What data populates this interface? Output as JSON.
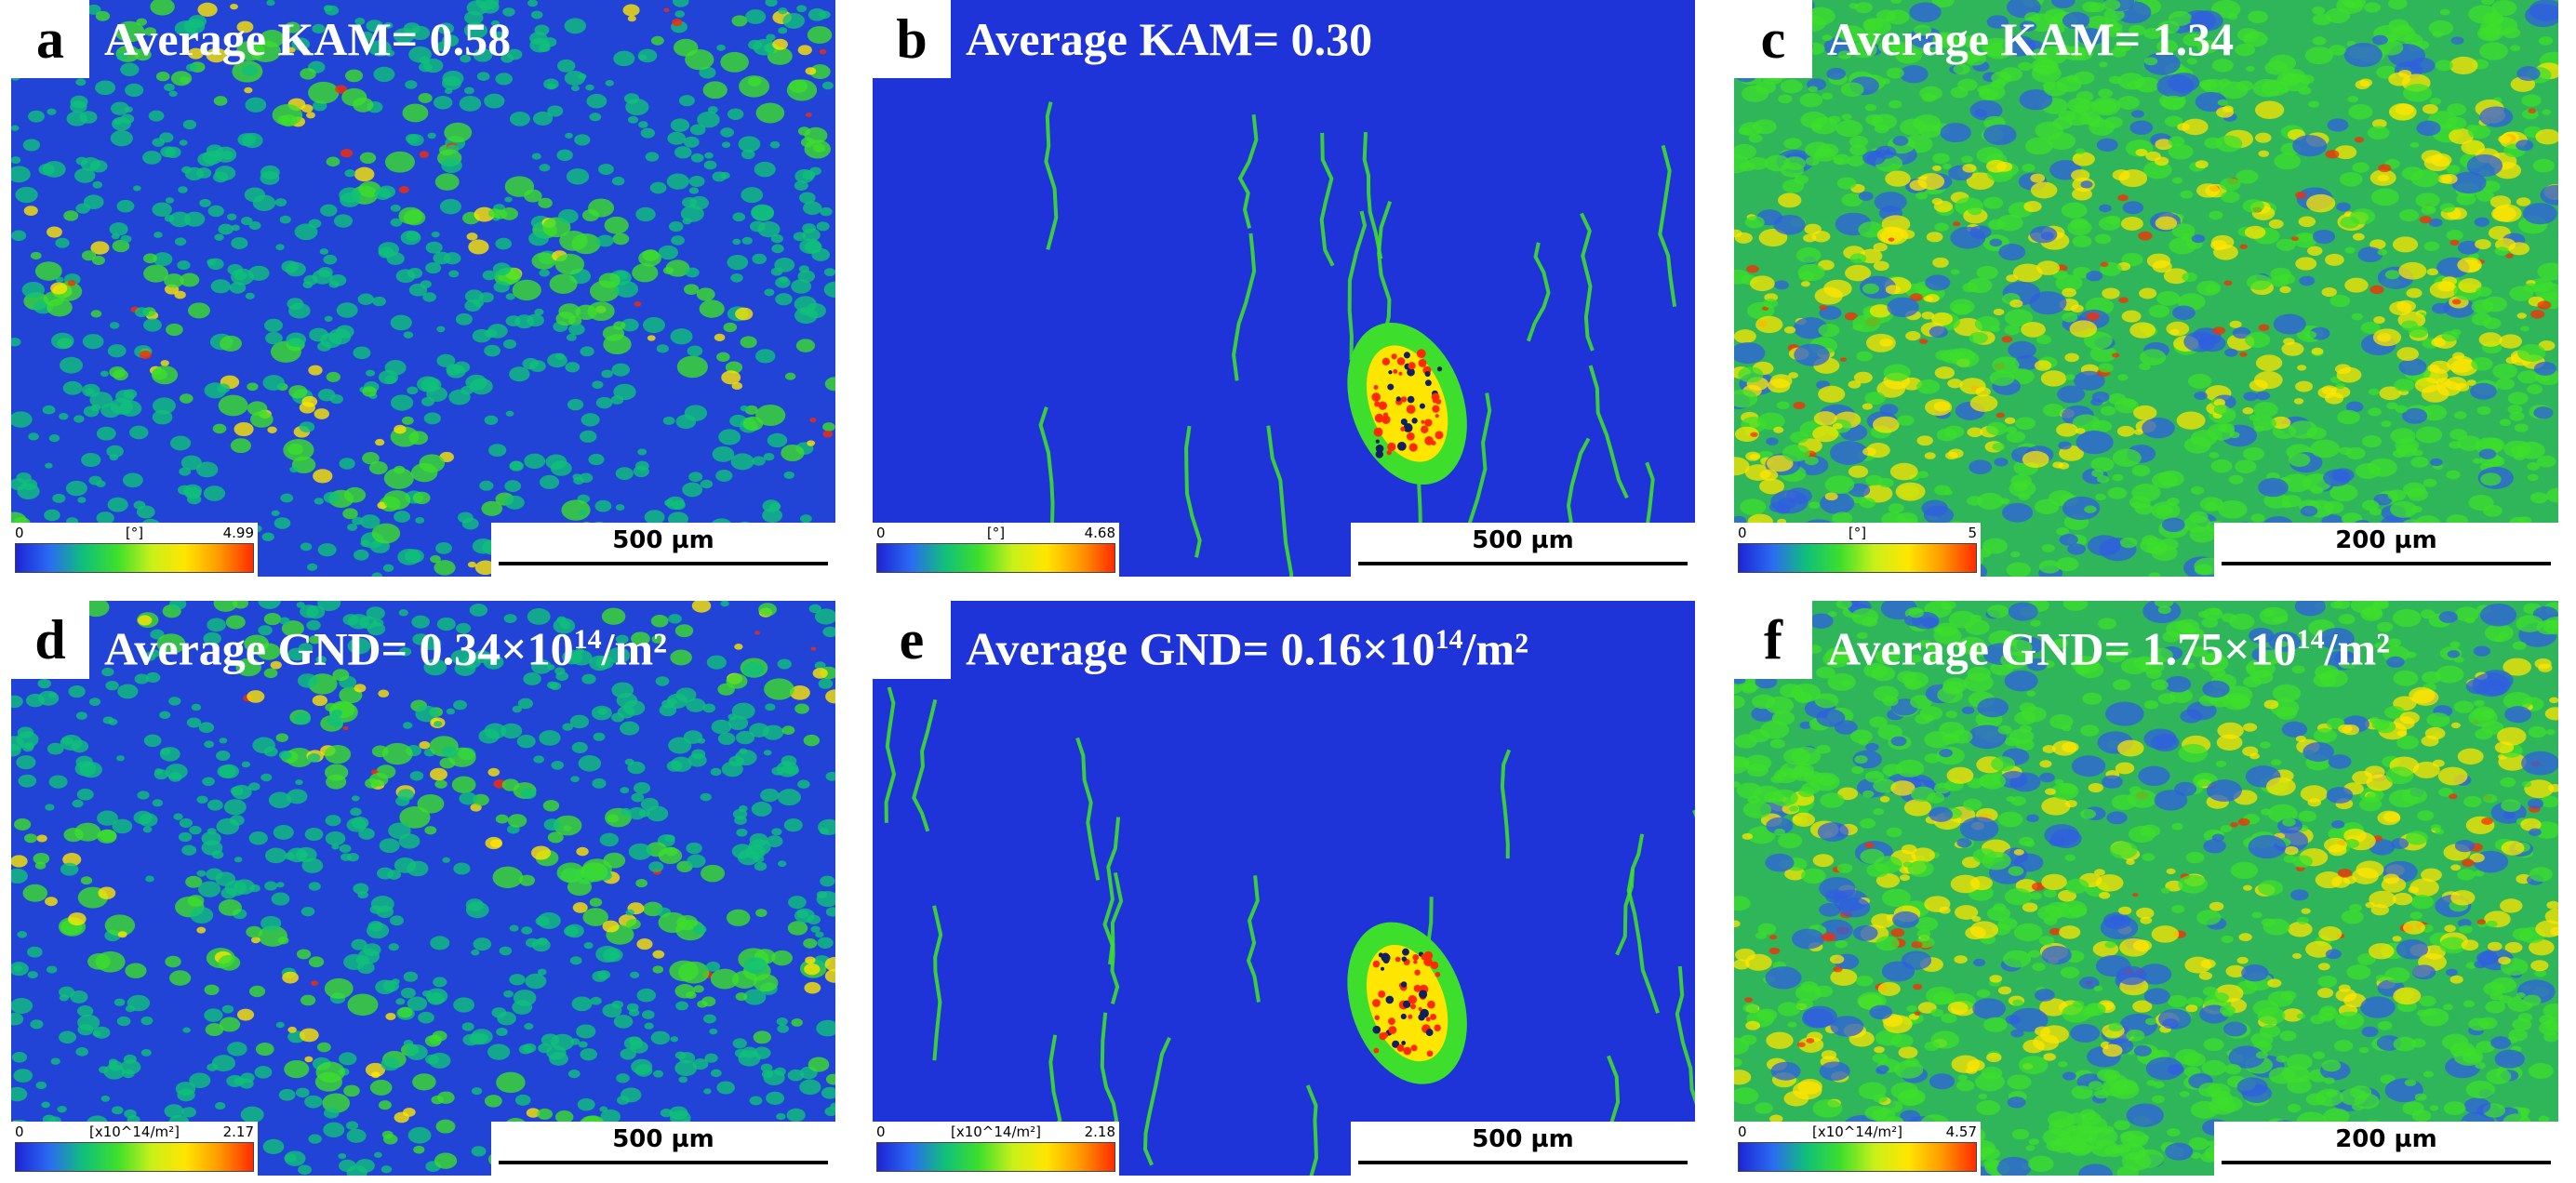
{
  "panels": [
    {
      "letter": "a",
      "title": "Average KAM= 0.58",
      "sup": "",
      "unit_suffix": "",
      "legend_min": "0",
      "legend_unit": "[°]",
      "legend_max": "4.99",
      "scalebar": "500 µm",
      "variant": "fine"
    },
    {
      "letter": "b",
      "title": "Average KAM= 0.30",
      "sup": "",
      "unit_suffix": "",
      "legend_min": "0",
      "legend_unit": "[°]",
      "legend_max": "4.68",
      "scalebar": "500 µm",
      "variant": "coarse"
    },
    {
      "letter": "c",
      "title": "Average KAM= 1.34",
      "sup": "",
      "unit_suffix": "",
      "legend_min": "0",
      "legend_unit": "[°]",
      "legend_max": "5",
      "scalebar": "200 µm",
      "variant": "deformed"
    },
    {
      "letter": "d",
      "title": "Average GND= 0.34×10",
      "sup": "14",
      "unit_suffix": "/m²",
      "legend_min": "0",
      "legend_unit": "[x10^14/m²]",
      "legend_max": "2.17",
      "scalebar": "500 µm",
      "variant": "fine"
    },
    {
      "letter": "e",
      "title": "Average GND= 0.16×10",
      "sup": "14",
      "unit_suffix": "/m²",
      "legend_min": "0",
      "legend_unit": "[x10^14/m²]",
      "legend_max": "2.18",
      "scalebar": "500 µm",
      "variant": "coarse"
    },
    {
      "letter": "f",
      "title": "Average GND= 1.75×10",
      "sup": "14",
      "unit_suffix": "/m²",
      "legend_min": "0",
      "legend_unit": "[x10^14/m²]",
      "legend_max": "4.57",
      "scalebar": "200 µm",
      "variant": "deformed"
    }
  ],
  "colors": {
    "low": "#1d24d6",
    "mid_low": "#10c07a",
    "mid": "#3ddf2c",
    "mid_high": "#ffe600",
    "high": "#ff2b00"
  }
}
